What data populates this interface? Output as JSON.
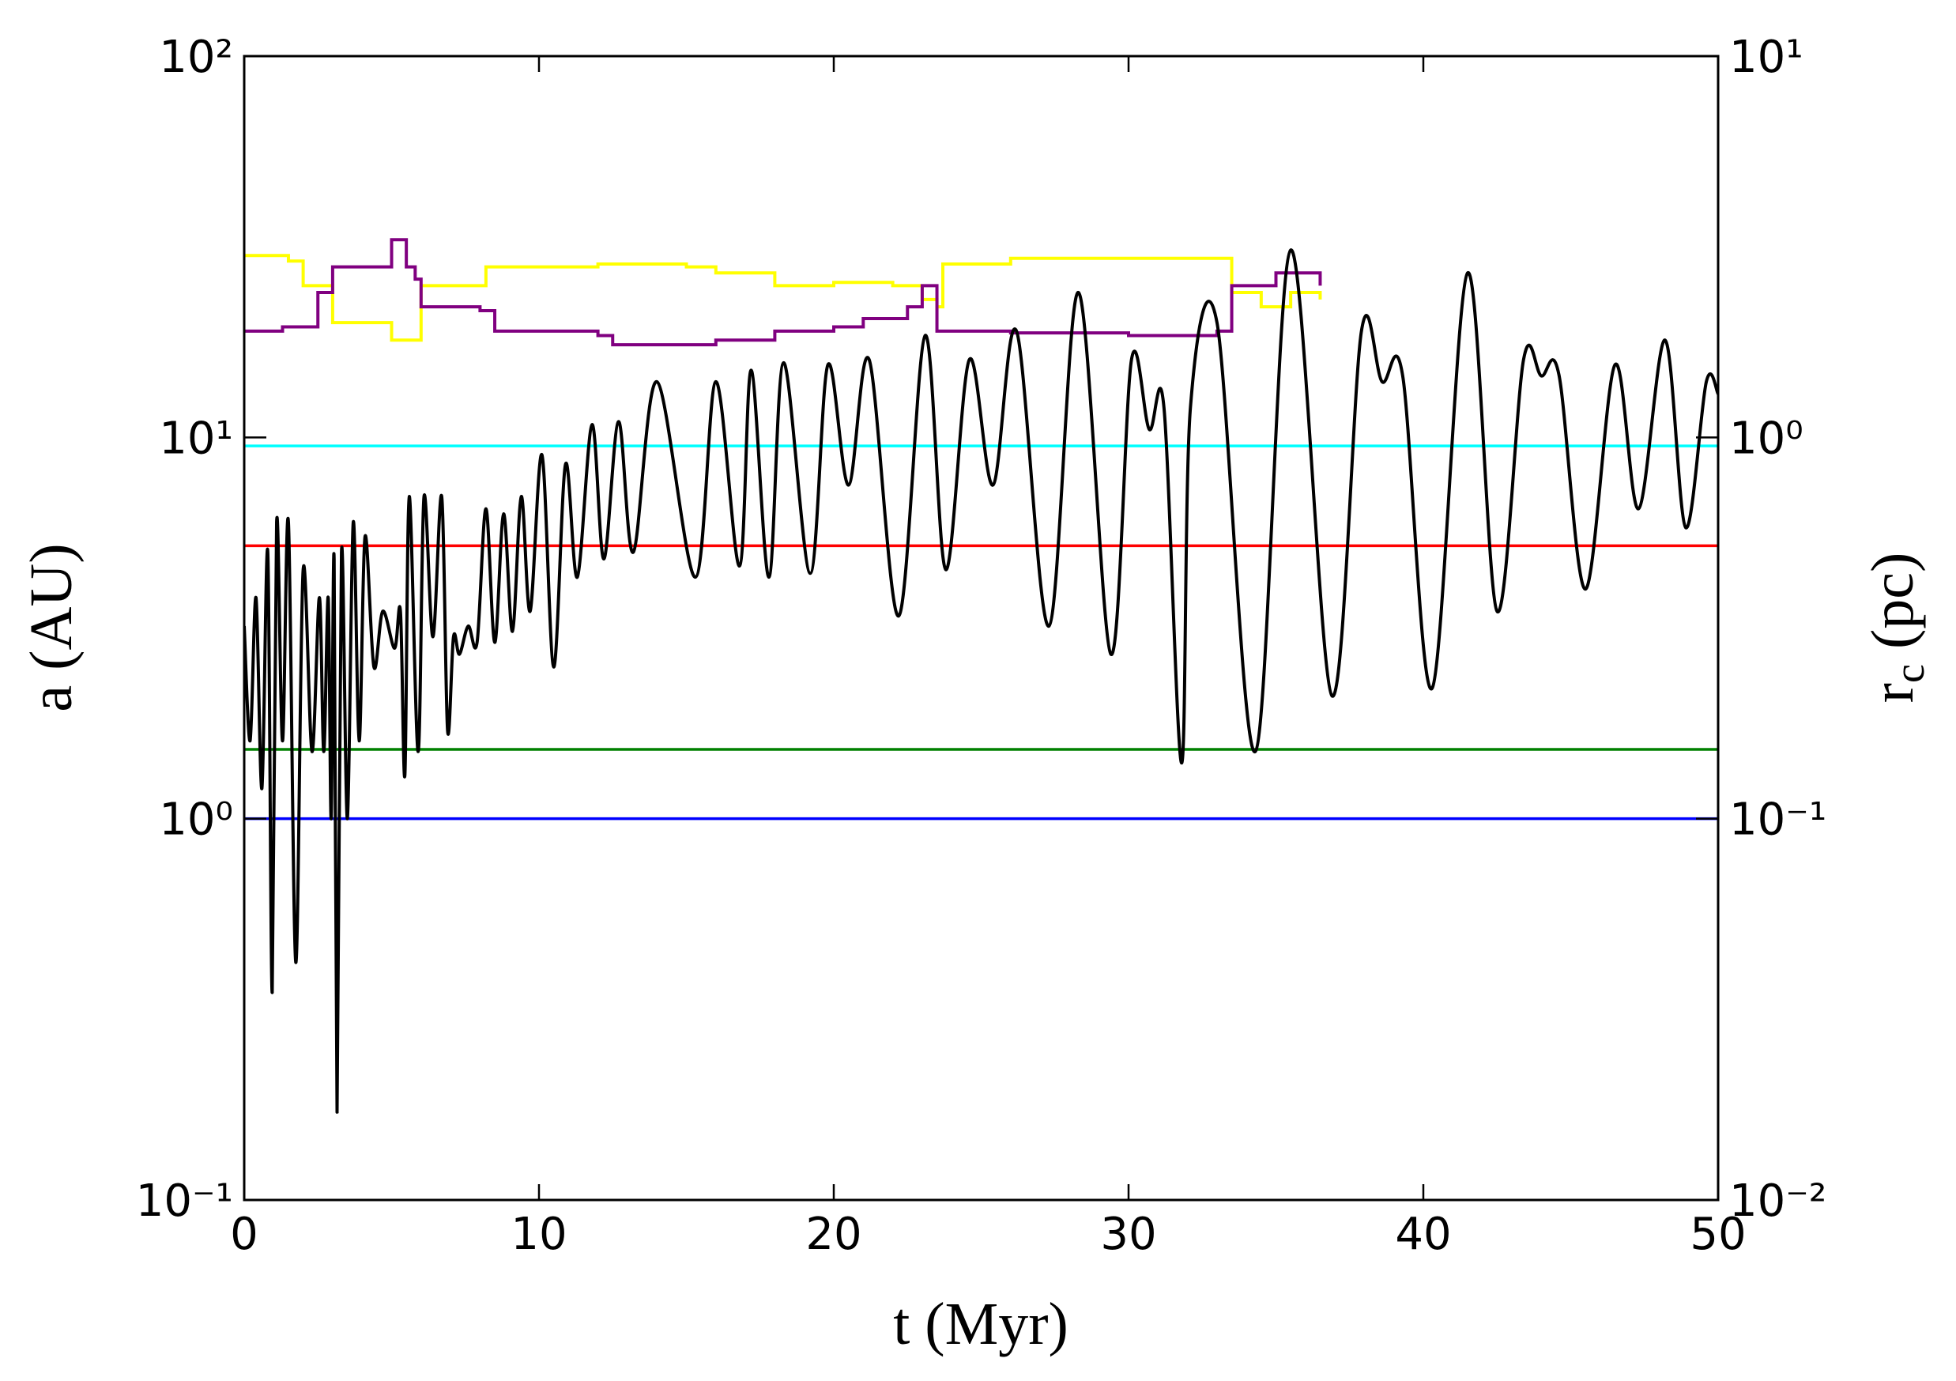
{
  "chart_data": {
    "type": "line",
    "xlabel": "t (Myr)",
    "ylabel": "a (AU)",
    "y2label": {
      "text": "r",
      "subscript": "c",
      "unit": "(pc)"
    },
    "xlim": [
      0,
      50
    ],
    "xticks": [
      0,
      10,
      20,
      30,
      40,
      50
    ],
    "ylim": [
      0.1,
      100
    ],
    "ylog": true,
    "yticks": [
      {
        "value": 0.1,
        "label": "10⁻¹"
      },
      {
        "value": 1,
        "label": "10⁰"
      },
      {
        "value": 10,
        "label": "10¹"
      },
      {
        "value": 100,
        "label": "10²"
      }
    ],
    "y2lim": [
      0.01,
      10
    ],
    "y2log": true,
    "y2ticks": [
      {
        "value": 0.01,
        "label": "10⁻²"
      },
      {
        "value": 0.1,
        "label": "10⁻¹"
      },
      {
        "value": 1,
        "label": "10⁰"
      },
      {
        "value": 10,
        "label": "10¹"
      }
    ],
    "series": [
      {
        "color": "#0000ff",
        "x": [
          0,
          50
        ],
        "values": [
          1.0,
          1.0
        ]
      },
      {
        "color": "#008000",
        "x": [
          0,
          50
        ],
        "values": [
          1.52,
          1.52
        ]
      },
      {
        "color": "#ff0000",
        "x": [
          0,
          50
        ],
        "values": [
          5.2,
          5.2
        ]
      },
      {
        "color": "#00ffff",
        "x": [
          0,
          50
        ],
        "values": [
          9.5,
          9.5
        ]
      },
      {
        "color": "#ffff00",
        "x": [
          0,
          1.5,
          2,
          3,
          5,
          5.9,
          6,
          8.1,
          8.2,
          12,
          15,
          16,
          18,
          20,
          22,
          23,
          23.5,
          23.7,
          26,
          33.3,
          33.5,
          34.5,
          35.5,
          36.5
        ],
        "values": [
          30,
          29,
          25,
          20,
          18,
          18,
          25,
          25,
          28,
          28.5,
          28,
          27,
          25,
          25.5,
          25,
          23,
          22,
          28.5,
          29.5,
          29.5,
          24,
          22,
          24,
          23
        ]
      },
      {
        "color": "#800080",
        "x": [
          0,
          1.3,
          2.5,
          3,
          4.5,
          5,
          5.5,
          5.8,
          6,
          8,
          8.5,
          12,
          12.5,
          16,
          18,
          20,
          21,
          22.5,
          23,
          23.5,
          26,
          30,
          33,
          33.5,
          35,
          36.5
        ],
        "values": [
          19,
          19.5,
          24,
          28,
          28,
          33,
          28,
          26,
          22,
          21.5,
          19,
          18.5,
          17.5,
          18,
          19,
          19.5,
          20.5,
          22,
          25,
          19,
          18.8,
          18.5,
          19,
          25,
          27,
          25
        ]
      },
      {
        "color": "#000000",
        "axis": "y2",
        "x": [
          0,
          0.2,
          0.4,
          0.6,
          0.8,
          0.95,
          1.1,
          1.3,
          1.5,
          1.75,
          2,
          2.3,
          2.55,
          2.7,
          2.85,
          2.95,
          3.05,
          3.15,
          3.3,
          3.5,
          3.7,
          3.9,
          4.1,
          4.4,
          4.7,
          5.1,
          5.3,
          5.45,
          5.6,
          5.9,
          6.1,
          6.4,
          6.7,
          6.9,
          7.1,
          7.3,
          7.6,
          7.9,
          8.2,
          8.5,
          8.8,
          9.1,
          9.4,
          9.7,
          10.1,
          10.5,
          10.9,
          11.3,
          11.8,
          12.2,
          12.7,
          13.2,
          14,
          15.3,
          16,
          16.8,
          17.2,
          17.8,
          18.3,
          19.2,
          19.8,
          20.5,
          21.2,
          22.2,
          23.1,
          23.8,
          24.6,
          25.4,
          26.2,
          27.3,
          28.3,
          29.4,
          30.1,
          30.7,
          31.2,
          31.8,
          32.1,
          33,
          34.3,
          35.5,
          36.9,
          37.9,
          38.6,
          39.3,
          40.3,
          41.5,
          42.5,
          43.4,
          44,
          44.6,
          45.5,
          46.5,
          47.3,
          48.2,
          48.9,
          49.6,
          50
        ],
        "values": [
          0.32,
          0.16,
          0.38,
          0.12,
          0.5,
          0.035,
          0.6,
          0.16,
          0.6,
          0.042,
          0.45,
          0.15,
          0.38,
          0.15,
          0.38,
          0.1,
          0.48,
          0.017,
          0.5,
          0.1,
          0.6,
          0.16,
          0.55,
          0.25,
          0.35,
          0.28,
          0.35,
          0.13,
          0.7,
          0.15,
          0.7,
          0.3,
          0.7,
          0.17,
          0.3,
          0.27,
          0.32,
          0.29,
          0.65,
          0.29,
          0.63,
          0.31,
          0.7,
          0.35,
          0.9,
          0.25,
          0.85,
          0.43,
          1.08,
          0.48,
          1.1,
          0.5,
          1.4,
          0.43,
          1.4,
          0.46,
          1.5,
          0.43,
          1.57,
          0.44,
          1.55,
          0.75,
          1.6,
          0.34,
          1.85,
          0.45,
          1.6,
          0.75,
          1.9,
          0.32,
          2.4,
          0.27,
          1.6,
          1.05,
          1.2,
          0.14,
          1.2,
          2.0,
          0.15,
          3.1,
          0.21,
          1.9,
          1.4,
          1.45,
          0.22,
          2.7,
          0.35,
          1.6,
          1.45,
          1.46,
          0.4,
          1.55,
          0.65,
          1.8,
          0.58,
          1.4,
          1.3
        ]
      }
    ]
  }
}
